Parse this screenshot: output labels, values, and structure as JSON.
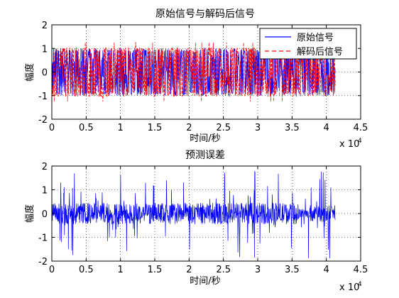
{
  "window": {
    "background": "#ffffff"
  },
  "chart_data": [
    {
      "type": "line",
      "title": "原始信号与解码后信号",
      "xlabel": "时间/秒",
      "ylabel": "幅度",
      "x_multiplier": "x 10",
      "x_exponent": "4",
      "xlim": [
        0,
        4.5
      ],
      "ylim": [
        -2,
        2
      ],
      "xticks": [
        "0",
        "0.5",
        "1",
        "1.5",
        "2",
        "2.5",
        "3",
        "3.5",
        "4",
        "4.5"
      ],
      "yticks": [
        "2",
        "1",
        "0",
        "-1",
        "-2"
      ],
      "grid": "dotted",
      "legend_position": "top-right",
      "x_end": 4.13,
      "series": [
        {
          "name": "原始信号",
          "color": "#0000ff",
          "style": "solid",
          "envelope": 1.0
        },
        {
          "name": "解码后信号",
          "color": "#ff0000",
          "style": "dashed",
          "envelope": 1.05
        }
      ]
    },
    {
      "type": "line",
      "title": "预测误差",
      "xlabel": "时间/秒",
      "ylabel": "幅度",
      "x_multiplier": "x 10",
      "x_exponent": "4",
      "xlim": [
        0,
        4.5
      ],
      "ylim": [
        -2,
        2
      ],
      "xticks": [
        "0",
        "0.5",
        "1",
        "1.5",
        "2",
        "2.5",
        "3",
        "3.5",
        "4",
        "4.5"
      ],
      "yticks": [
        "2",
        "1",
        "0",
        "-1",
        "-2"
      ],
      "grid": "dotted",
      "x_end": 4.13,
      "series": [
        {
          "color": "#0000ff",
          "style": "solid"
        }
      ]
    }
  ]
}
